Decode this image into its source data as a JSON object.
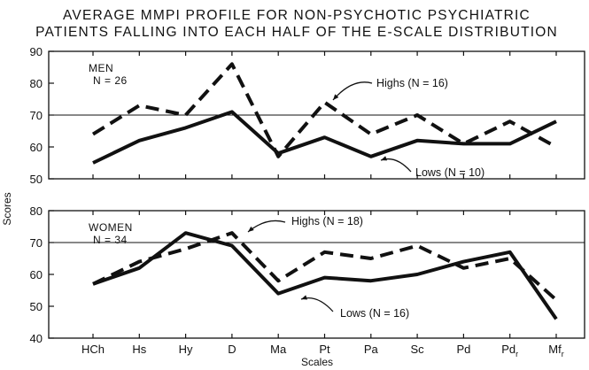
{
  "chart_data": {
    "type": "line",
    "title": [
      "AVERAGE MMPI PROFILE FOR NON-PSYCHOTIC PSYCHIATRIC",
      "PATIENTS FALLING INTO EACH HALF OF THE E-SCALE DISTRIBUTION"
    ],
    "xlabel": "Scales",
    "ylabel": "Scores",
    "categories": [
      "HCh",
      "Hs",
      "Hy",
      "D",
      "Ma",
      "Pt",
      "Pa",
      "Sc",
      "Pd",
      "Pd",
      "Mf"
    ],
    "category_subscripts": [
      "",
      "",
      "",
      "",
      "",
      "",
      "",
      "",
      "",
      "r",
      "r"
    ],
    "grid": false,
    "panels": [
      {
        "label": [
          "MEN",
          "N = 26"
        ],
        "ylim": [
          50,
          90
        ],
        "yticks": [
          50,
          60,
          70,
          80,
          90
        ],
        "reference_line": 70,
        "series": [
          {
            "name": "Highs (N = 16)",
            "style": "dashed",
            "values": [
              64,
              73,
              70,
              86,
              57,
              74,
              64,
              70,
              61,
              68,
              60
            ]
          },
          {
            "name": "Lows (N = 10)",
            "style": "solid",
            "values": [
              55,
              62,
              66,
              71,
              58,
              63,
              57,
              62,
              61,
              61,
              68
            ]
          }
        ]
      },
      {
        "label": [
          "WOMEN",
          "N = 34"
        ],
        "ylim": [
          40,
          80
        ],
        "yticks": [
          40,
          50,
          60,
          70,
          80
        ],
        "reference_line": 70,
        "series": [
          {
            "name": "Highs (N = 18)",
            "style": "dashed",
            "values": [
              57,
              64,
              68,
              73,
              58,
              67,
              65,
              69,
              62,
              65,
              52
            ]
          },
          {
            "name": "Lows (N = 16)",
            "style": "solid",
            "values": [
              57,
              62,
              73,
              69,
              54,
              59,
              58,
              60,
              64,
              67,
              46
            ]
          }
        ]
      }
    ]
  }
}
